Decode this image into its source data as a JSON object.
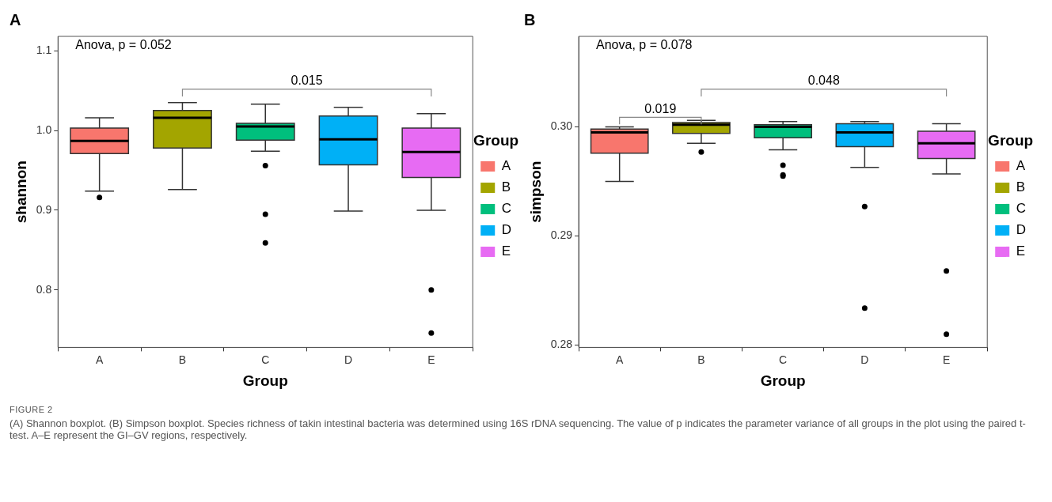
{
  "chart_data": [
    {
      "type": "box",
      "title": "A",
      "xlabel": "Group",
      "ylabel": "shannon",
      "legend_title": "Group",
      "legend": "right",
      "grid": false,
      "categories": [
        "A",
        "B",
        "C",
        "D",
        "E"
      ],
      "ylim": [
        0.728,
        1.118
      ],
      "yticks": [
        0.8,
        0.9,
        {
          "value": 1,
          "label": "1.0"
        },
        1.1
      ],
      "annotations": [
        "Anova, p = 0.052",
        "0.015"
      ],
      "series": [
        {
          "name": "A",
          "color": "#f8766d",
          "boxes": [
            {
              "low": 0.924,
              "q1": 0.971,
              "median": 0.987,
              "q3": 1.003,
              "high": 1.016,
              "outliers": [
                0.916
              ]
            },
            null,
            null,
            null,
            null
          ]
        },
        {
          "name": "B",
          "color": "#a3a500",
          "boxes": [
            null,
            {
              "low": 0.926,
              "q1": 0.978,
              "median": 1.016,
              "q3": 1.025,
              "high": 1.035
            },
            null,
            null,
            null
          ]
        },
        {
          "name": "C",
          "color": "#00bf7d",
          "boxes": [
            null,
            null,
            {
              "low": 0.974,
              "q1": 0.988,
              "median": 1.005,
              "q3": 1.009,
              "high": 1.033,
              "outliers": [
                0.956,
                0.895,
                0.859
              ]
            },
            null,
            null
          ]
        },
        {
          "name": "D",
          "color": "#00b0f6",
          "boxes": [
            null,
            null,
            null,
            {
              "low": 0.899,
              "q1": 0.957,
              "median": 0.989,
              "q3": 1.018,
              "high": 1.029
            },
            null
          ]
        },
        {
          "name": "E",
          "color": "#e76bf3",
          "boxes": [
            null,
            null,
            null,
            null,
            {
              "low": 0.9,
              "q1": 0.941,
              "median": 0.973,
              "q3": 1.003,
              "high": 1.021,
              "outliers": [
                0.8,
                0.746
              ]
            }
          ]
        }
      ]
    },
    {
      "type": "box",
      "title": "B",
      "xlabel": "Group",
      "ylabel": "simpson",
      "legend_title": "Group",
      "legend": "right",
      "grid": false,
      "categories": [
        "A",
        "B",
        "C",
        "D",
        "E"
      ],
      "ylim": [
        0.2798,
        0.3083
      ],
      "yticks": [
        {
          "value": 0.28,
          "label": "0.28"
        },
        0.29,
        {
          "value": 0.3,
          "label": "0.30"
        }
      ],
      "annotations": [
        "Anova, p = 0.078",
        "0.019",
        "0.048",
        "FIGURE 2",
        "(A) Shannon boxplot. (B) Simpson boxplot. Species richness of takin intestinal bacteria was determined using 16S rDNA sequencing. The value of p indicates the parameter variance of all groups in the plot using the paired t-test. A–E represent the GI–GV regions, respectively."
      ],
      "series": [
        {
          "name": "A",
          "color": "#f8766d",
          "boxes": [
            {
              "low": 0.295,
              "q1": 0.2976,
              "median": 0.2995,
              "q3": 0.2998,
              "high": 0.3
            },
            null,
            null,
            null,
            null
          ]
        },
        {
          "name": "B",
          "color": "#a3a500",
          "boxes": [
            null,
            {
              "low": 0.2985,
              "q1": 0.2994,
              "median": 0.3002,
              "q3": 0.3004,
              "high": 0.3006,
              "outliers": [
                0.2977
              ]
            },
            null,
            null,
            null
          ]
        },
        {
          "name": "C",
          "color": "#00bf7d",
          "boxes": [
            null,
            null,
            {
              "low": 0.2979,
              "q1": 0.299,
              "median": 0.3,
              "q3": 0.3002,
              "high": 0.3005,
              "outliers": [
                0.2965,
                0.2956,
                0.2955
              ]
            },
            null,
            null
          ]
        },
        {
          "name": "D",
          "color": "#00b0f6",
          "boxes": [
            null,
            null,
            null,
            {
              "low": 0.2963,
              "q1": 0.2982,
              "median": 0.2995,
              "q3": 0.3003,
              "high": 0.3005,
              "outliers": [
                0.2927,
                0.2834
              ]
            },
            null
          ]
        },
        {
          "name": "E",
          "color": "#e76bf3",
          "boxes": [
            null,
            null,
            null,
            null,
            {
              "low": 0.2957,
              "q1": 0.2971,
              "median": 0.2985,
              "q3": 0.2996,
              "high": 0.3003,
              "outliers": [
                0.2868,
                0.281
              ]
            }
          ]
        }
      ]
    }
  ]
}
